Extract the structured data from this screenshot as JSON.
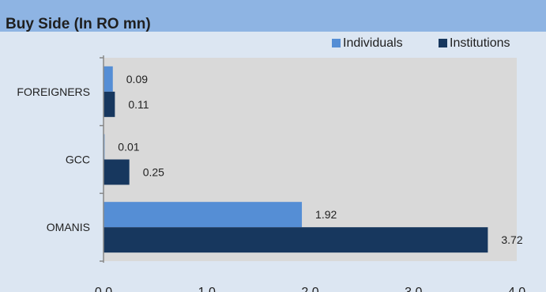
{
  "title": "Buy Side (In RO mn)",
  "chart_data": {
    "type": "bar",
    "orientation": "horizontal",
    "title": "Buy Side (In RO mn)",
    "categories": [
      "FOREIGNERS",
      "GCC",
      "OMANIS"
    ],
    "series": [
      {
        "name": "Individuals",
        "values": [
          0.09,
          0.01,
          1.92
        ],
        "labels": [
          "0.09",
          "0.01",
          "1.92"
        ],
        "color": "#558ed5"
      },
      {
        "name": "Institutions",
        "values": [
          0.11,
          0.25,
          3.72
        ],
        "labels": [
          "0.11",
          "0.25",
          "3.72"
        ],
        "color": "#17375e"
      }
    ],
    "xlim": [
      0,
      4
    ],
    "xticks": [
      "0.0",
      "1.0",
      "2.0",
      "3.0",
      "4.0"
    ],
    "legend_position": "top-right",
    "grid": false,
    "plot_background": "#d9d9d9"
  }
}
